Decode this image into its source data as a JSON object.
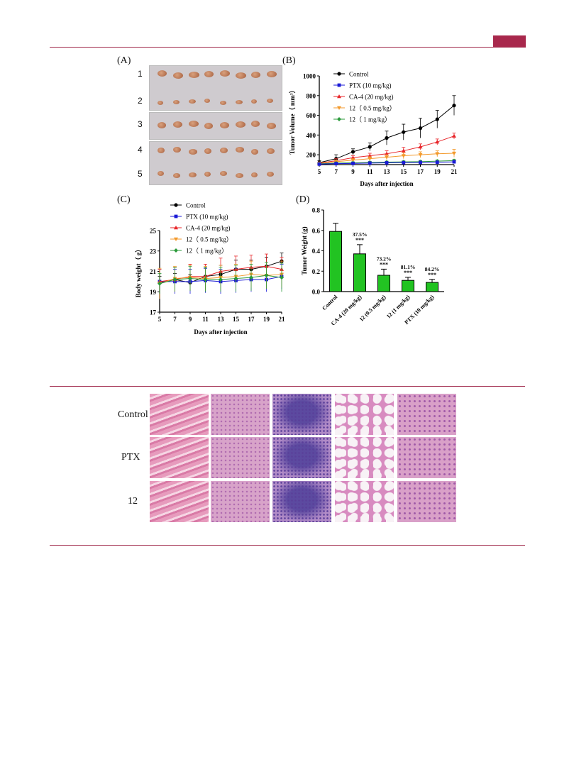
{
  "colors": {
    "accent": "#a8284c",
    "control": "#000000",
    "ptx": "#1a1ad6",
    "ca4": "#e8262a",
    "c12_05": "#f39a2c",
    "c12_1": "#2a9a3a",
    "bar": "#22c322"
  },
  "panels": {
    "a": "(A)",
    "b": "(B)",
    "c": "(C)",
    "d": "(D)"
  },
  "photo_rows": [
    "1",
    "2",
    "3",
    "4",
    "5"
  ],
  "legend": [
    "Control",
    "PTX (10 mg/kg)",
    "CA-4 (20 mg/kg)",
    "12（ 0.5 mg/kg）",
    "12（ 1 mg/kg）"
  ],
  "histology_rows": [
    "Control",
    "PTX",
    "12"
  ],
  "chart_data": [
    {
      "type": "line",
      "panel": "B",
      "xlabel": "Days after injection",
      "ylabel": "Tumor Volume（ mm³）",
      "x": [
        5,
        7,
        9,
        11,
        13,
        15,
        17,
        19,
        21
      ],
      "xlim": [
        5,
        21
      ],
      "ylim": [
        100,
        1000
      ],
      "yticks": [
        200,
        400,
        600,
        800,
        1000
      ],
      "series": [
        {
          "name": "Control",
          "values": [
            120,
            160,
            230,
            280,
            370,
            430,
            470,
            560,
            700
          ],
          "err": [
            20,
            40,
            30,
            40,
            70,
            80,
            100,
            90,
            100
          ]
        },
        {
          "name": "CA-4 (20 mg/kg)",
          "values": [
            115,
            140,
            170,
            190,
            210,
            240,
            280,
            330,
            390
          ],
          "err": [
            10,
            20,
            20,
            25,
            30,
            35,
            30,
            30,
            30
          ]
        },
        {
          "name": "12（ 0.5 mg/kg）",
          "values": [
            112,
            130,
            145,
            160,
            175,
            190,
            200,
            210,
            215
          ],
          "err": [
            10,
            15,
            15,
            20,
            25,
            30,
            30,
            30,
            40
          ]
        },
        {
          "name": "12（ 1 mg/kg）",
          "values": [
            108,
            115,
            118,
            122,
            125,
            128,
            130,
            135,
            140
          ],
          "err": [
            8,
            10,
            10,
            10,
            10,
            10,
            12,
            12,
            12
          ]
        },
        {
          "name": "PTX (10 mg/kg)",
          "values": [
            105,
            110,
            112,
            115,
            118,
            120,
            122,
            124,
            128
          ],
          "err": [
            8,
            8,
            8,
            8,
            8,
            8,
            8,
            10,
            10
          ]
        }
      ]
    },
    {
      "type": "line",
      "panel": "C",
      "xlabel": "Days after injection",
      "ylabel": "Body weight（ g）",
      "x": [
        5,
        7,
        9,
        11,
        13,
        15,
        17,
        19,
        21
      ],
      "xlim": [
        5,
        21
      ],
      "ylim": [
        17,
        25
      ],
      "yticks": [
        17,
        19,
        21,
        23,
        25
      ],
      "series": [
        {
          "name": "Control",
          "values": [
            19.9,
            20.2,
            19.9,
            20.5,
            20.7,
            21.2,
            21.2,
            21.5,
            22.0
          ],
          "err": [
            0.6,
            0.6,
            0.8,
            0.8,
            0.9,
            0.9,
            0.9,
            0.9,
            0.8
          ]
        },
        {
          "name": "PTX (10 mg/kg)",
          "values": [
            20.0,
            20.0,
            20.0,
            20.1,
            20.0,
            20.1,
            20.2,
            20.2,
            20.5
          ],
          "err": [
            1.2,
            1.2,
            1.2,
            1.2,
            1.2,
            1.2,
            1.2,
            1.2,
            1.2
          ]
        },
        {
          "name": "CA-4 (20 mg/kg)",
          "values": [
            20.0,
            20.2,
            20.5,
            20.5,
            21.0,
            21.2,
            21.4,
            21.5,
            21.2
          ],
          "err": [
            1.2,
            1.2,
            1.2,
            1.2,
            1.3,
            1.3,
            1.2,
            1.2,
            1.2
          ]
        },
        {
          "name": "12（ 0.5 mg/kg）",
          "values": [
            19.8,
            20.3,
            20.4,
            20.3,
            20.4,
            20.5,
            20.7,
            20.6,
            20.7
          ],
          "err": [
            1.5,
            1.2,
            1.2,
            1.2,
            1.2,
            1.2,
            1.3,
            1.3,
            1.3
          ]
        },
        {
          "name": "12（ 1 mg/kg）",
          "values": [
            19.8,
            20.2,
            20.3,
            20.2,
            20.2,
            20.3,
            20.4,
            20.6,
            20.4
          ],
          "err": [
            1.0,
            1.2,
            1.2,
            1.2,
            1.2,
            1.3,
            1.3,
            1.3,
            1.4
          ]
        }
      ]
    },
    {
      "type": "bar",
      "panel": "D",
      "ylabel": "Tumor Weight (g)",
      "ylim": [
        0,
        0.8
      ],
      "yticks": [
        "0.0",
        "0.2",
        "0.4",
        "0.6",
        "0.8"
      ],
      "categories": [
        "Control",
        "CA-4 (20 mg/kg)",
        "12 (0.5 mg/kg)",
        "12 (1 mg/kg)",
        "PTX (10 mg/kg)"
      ],
      "values": [
        0.59,
        0.37,
        0.16,
        0.11,
        0.09
      ],
      "err": [
        0.08,
        0.09,
        0.06,
        0.03,
        0.03
      ],
      "annotations": [
        {
          "pct": "",
          "sig": ""
        },
        {
          "pct": "37.5%",
          "sig": "***"
        },
        {
          "pct": "73.2%",
          "sig": "***"
        },
        {
          "pct": "81.1%",
          "sig": "***"
        },
        {
          "pct": "84.2%",
          "sig": "***"
        }
      ]
    }
  ]
}
